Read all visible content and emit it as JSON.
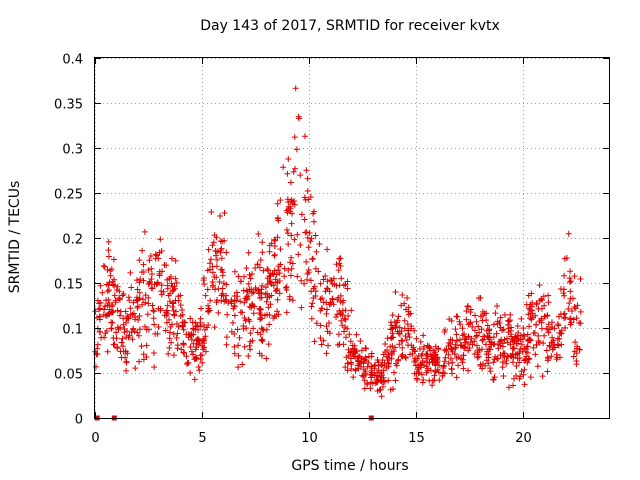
{
  "chart_data": {
    "type": "scatter",
    "title": "Day 143 of 2017, SRMTID for receiver kvtx",
    "xlabel": "GPS time / hours",
    "ylabel": "SRMTID / TECUs",
    "xlim": [
      0,
      24
    ],
    "ylim": [
      0,
      0.4
    ],
    "x_ticks": [
      "0",
      "5",
      "10",
      "15",
      "20"
    ],
    "y_ticks": [
      "0",
      "0.05",
      "0.1",
      "0.15",
      "0.2",
      "0.25",
      "0.3",
      "0.35",
      "0.4"
    ],
    "grid": true,
    "marker": "+",
    "color": "#e00000",
    "series_profile": [
      {
        "x": 0.0,
        "y": 0.09
      },
      {
        "x": 0.4,
        "y": 0.13
      },
      {
        "x": 0.8,
        "y": 0.14
      },
      {
        "x": 1.0,
        "y": 0.11
      },
      {
        "x": 1.5,
        "y": 0.1
      },
      {
        "x": 2.0,
        "y": 0.12
      },
      {
        "x": 2.5,
        "y": 0.14
      },
      {
        "x": 3.0,
        "y": 0.15
      },
      {
        "x": 3.5,
        "y": 0.12
      },
      {
        "x": 4.0,
        "y": 0.11
      },
      {
        "x": 4.5,
        "y": 0.08
      },
      {
        "x": 5.0,
        "y": 0.09
      },
      {
        "x": 5.5,
        "y": 0.17
      },
      {
        "x": 6.0,
        "y": 0.16
      },
      {
        "x": 6.5,
        "y": 0.11
      },
      {
        "x": 7.0,
        "y": 0.12
      },
      {
        "x": 7.5,
        "y": 0.14
      },
      {
        "x": 8.0,
        "y": 0.12
      },
      {
        "x": 8.5,
        "y": 0.16
      },
      {
        "x": 9.0,
        "y": 0.2
      },
      {
        "x": 9.5,
        "y": 0.26
      },
      {
        "x": 10.0,
        "y": 0.19
      },
      {
        "x": 10.5,
        "y": 0.12
      },
      {
        "x": 11.0,
        "y": 0.12
      },
      {
        "x": 11.5,
        "y": 0.13
      },
      {
        "x": 12.0,
        "y": 0.07
      },
      {
        "x": 12.5,
        "y": 0.06
      },
      {
        "x": 13.0,
        "y": 0.05
      },
      {
        "x": 13.5,
        "y": 0.05
      },
      {
        "x": 14.0,
        "y": 0.09
      },
      {
        "x": 14.5,
        "y": 0.09
      },
      {
        "x": 15.0,
        "y": 0.07
      },
      {
        "x": 15.5,
        "y": 0.06
      },
      {
        "x": 16.0,
        "y": 0.06
      },
      {
        "x": 16.5,
        "y": 0.07
      },
      {
        "x": 17.0,
        "y": 0.08
      },
      {
        "x": 17.5,
        "y": 0.09
      },
      {
        "x": 18.0,
        "y": 0.1
      },
      {
        "x": 18.5,
        "y": 0.08
      },
      {
        "x": 19.0,
        "y": 0.1
      },
      {
        "x": 19.5,
        "y": 0.08
      },
      {
        "x": 20.0,
        "y": 0.07
      },
      {
        "x": 20.5,
        "y": 0.11
      },
      {
        "x": 21.0,
        "y": 0.11
      },
      {
        "x": 21.5,
        "y": 0.08
      },
      {
        "x": 22.0,
        "y": 0.14
      },
      {
        "x": 22.5,
        "y": 0.1
      },
      {
        "x": 22.7,
        "y": 0.1
      }
    ],
    "zero_markers_x": [
      0.1,
      0.9,
      12.9
    ]
  }
}
